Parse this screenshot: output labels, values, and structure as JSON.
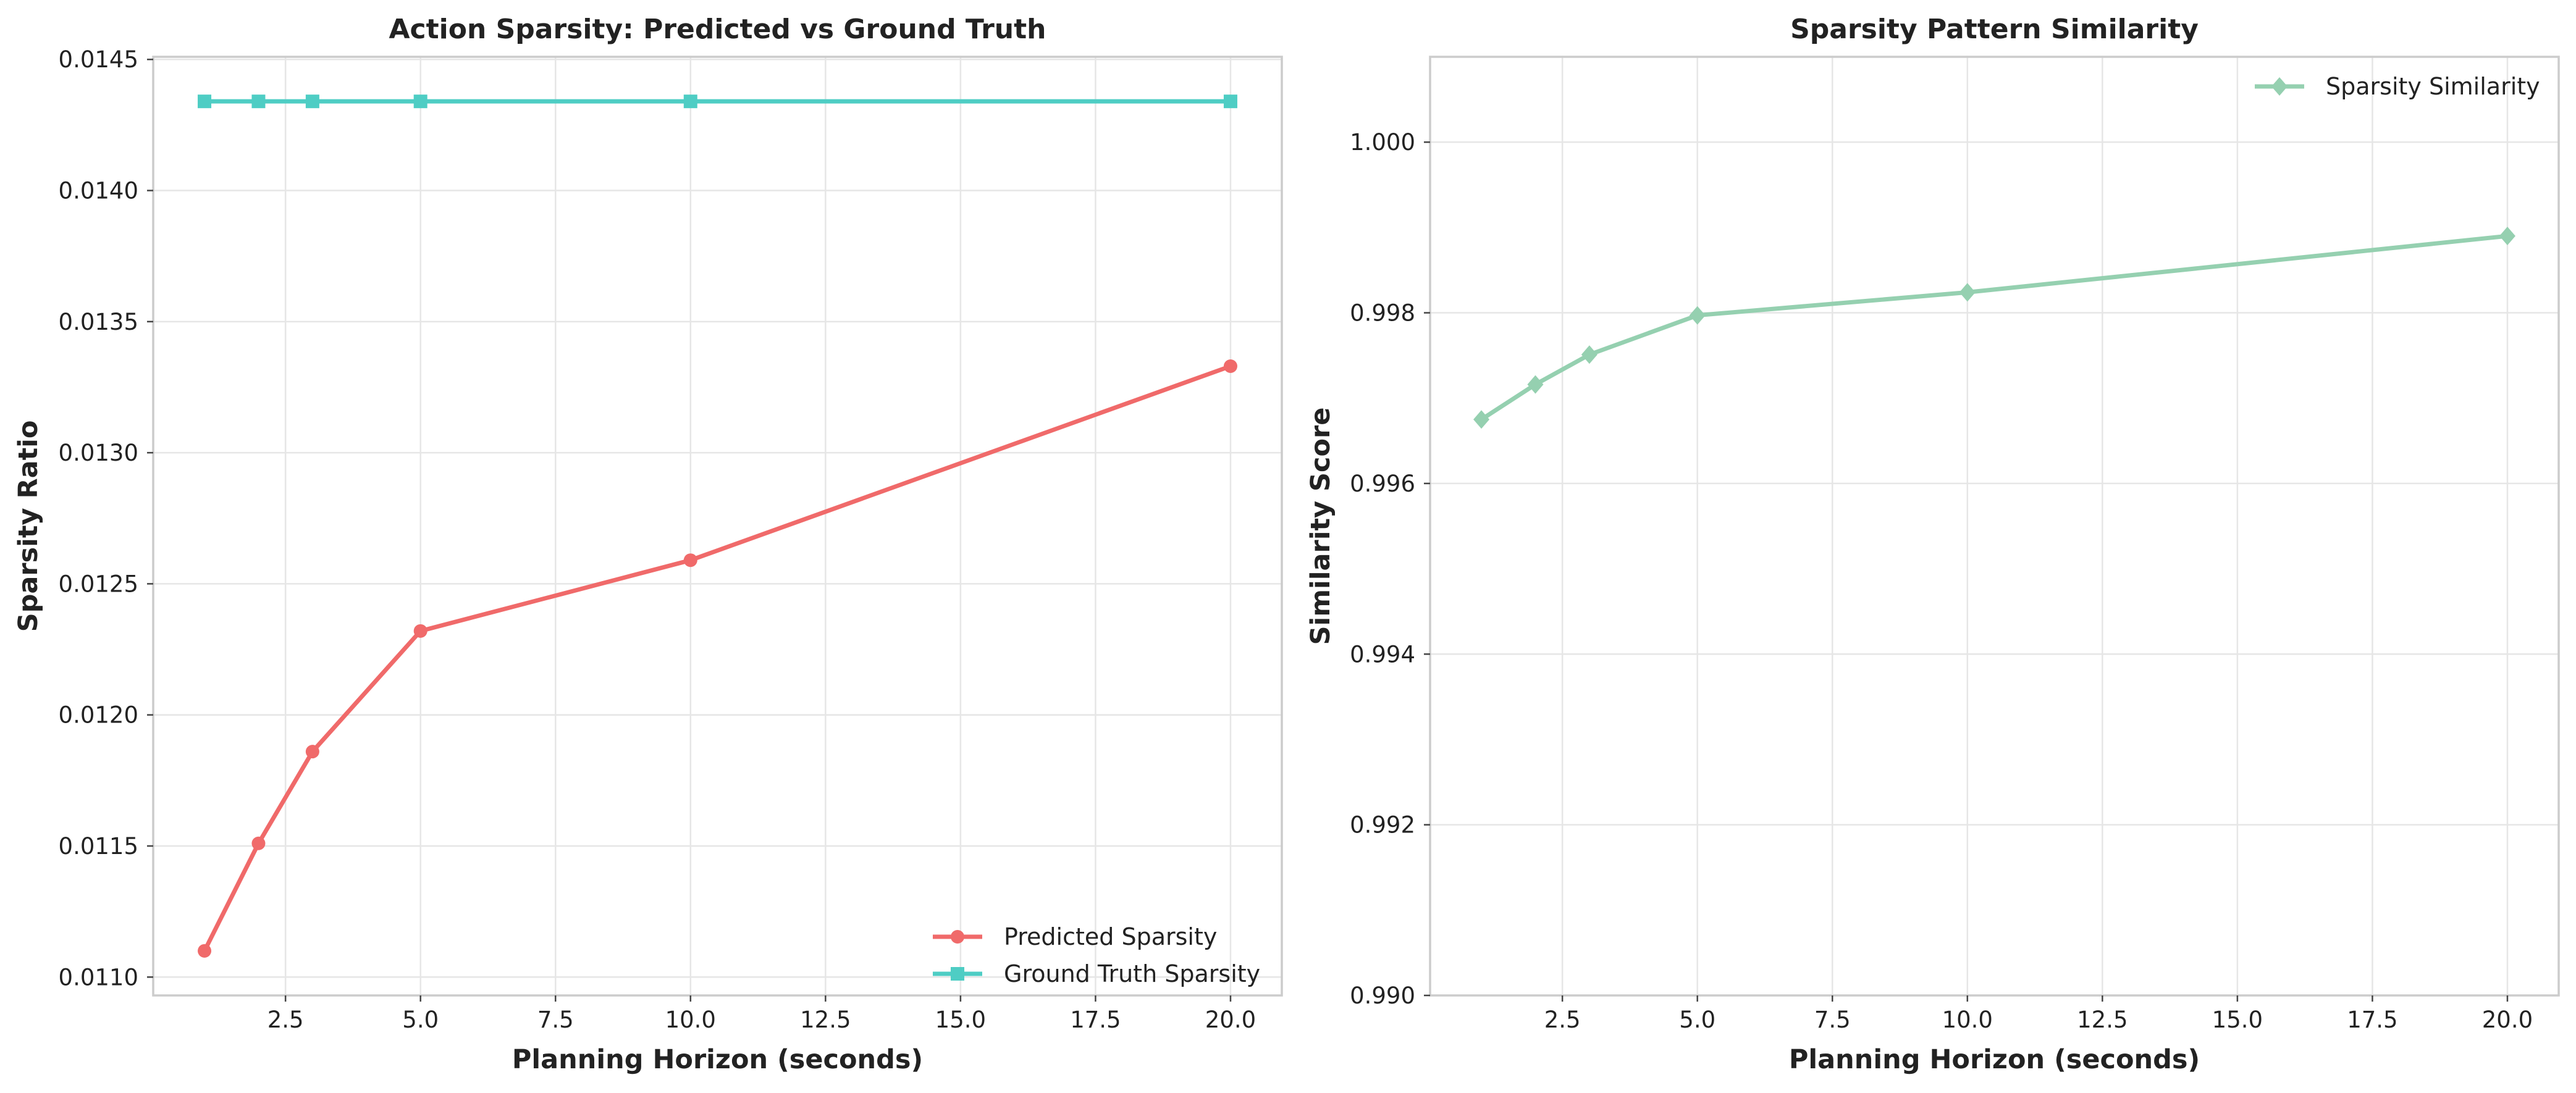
{
  "chart_data": [
    {
      "type": "line",
      "title": "Action Sparsity: Predicted vs Ground Truth",
      "xlabel": "Planning Horizon (seconds)",
      "ylabel": "Sparsity Ratio",
      "xlim": [
        0.05,
        20.95
      ],
      "ylim": [
        0.01093,
        0.01451
      ],
      "x_ticks": [
        2.5,
        5.0,
        7.5,
        10.0,
        12.5,
        15.0,
        17.5,
        20.0
      ],
      "x_tick_labels": [
        "2.5",
        "5.0",
        "7.5",
        "10.0",
        "12.5",
        "15.0",
        "17.5",
        "20.0"
      ],
      "y_ticks": [
        0.011,
        0.0115,
        0.012,
        0.0125,
        0.013,
        0.0135,
        0.014,
        0.0145
      ],
      "y_tick_labels": [
        "0.0110",
        "0.0115",
        "0.0120",
        "0.0125",
        "0.0130",
        "0.0135",
        "0.0140",
        "0.0145"
      ],
      "grid": true,
      "legend_position": "lower-right",
      "x": [
        1,
        2,
        3,
        5,
        10,
        20
      ],
      "series": [
        {
          "name": "Predicted Sparsity",
          "values": [
            0.0111,
            0.01151,
            0.01186,
            0.01232,
            0.01259,
            0.01333
          ],
          "color": "#f06a6a",
          "marker": "circle"
        },
        {
          "name": "Ground Truth Sparsity",
          "values": [
            0.01434,
            0.01434,
            0.01434,
            0.01434,
            0.01434,
            0.01434
          ],
          "color": "#4ecdc4",
          "marker": "square"
        }
      ]
    },
    {
      "type": "line",
      "title": "Sparsity Pattern Similarity",
      "xlabel": "Planning Horizon (seconds)",
      "ylabel": "Similarity Score",
      "xlim": [
        0.05,
        20.95
      ],
      "ylim": [
        0.99,
        1.001
      ],
      "x_ticks": [
        2.5,
        5.0,
        7.5,
        10.0,
        12.5,
        15.0,
        17.5,
        20.0
      ],
      "x_tick_labels": [
        "2.5",
        "5.0",
        "7.5",
        "10.0",
        "12.5",
        "15.0",
        "17.5",
        "20.0"
      ],
      "y_ticks": [
        0.99,
        0.992,
        0.994,
        0.996,
        0.998,
        1.0
      ],
      "y_tick_labels": [
        "0.990",
        "0.992",
        "0.994",
        "0.996",
        "0.998",
        "1.000"
      ],
      "grid": true,
      "legend_position": "top-right",
      "x": [
        1,
        2,
        3,
        5,
        10,
        20
      ],
      "series": [
        {
          "name": "Sparsity Similarity",
          "values": [
            0.99675,
            0.99716,
            0.99751,
            0.99797,
            0.99824,
            0.9989
          ],
          "color": "#95d0b0",
          "marker": "diamond"
        }
      ]
    }
  ]
}
